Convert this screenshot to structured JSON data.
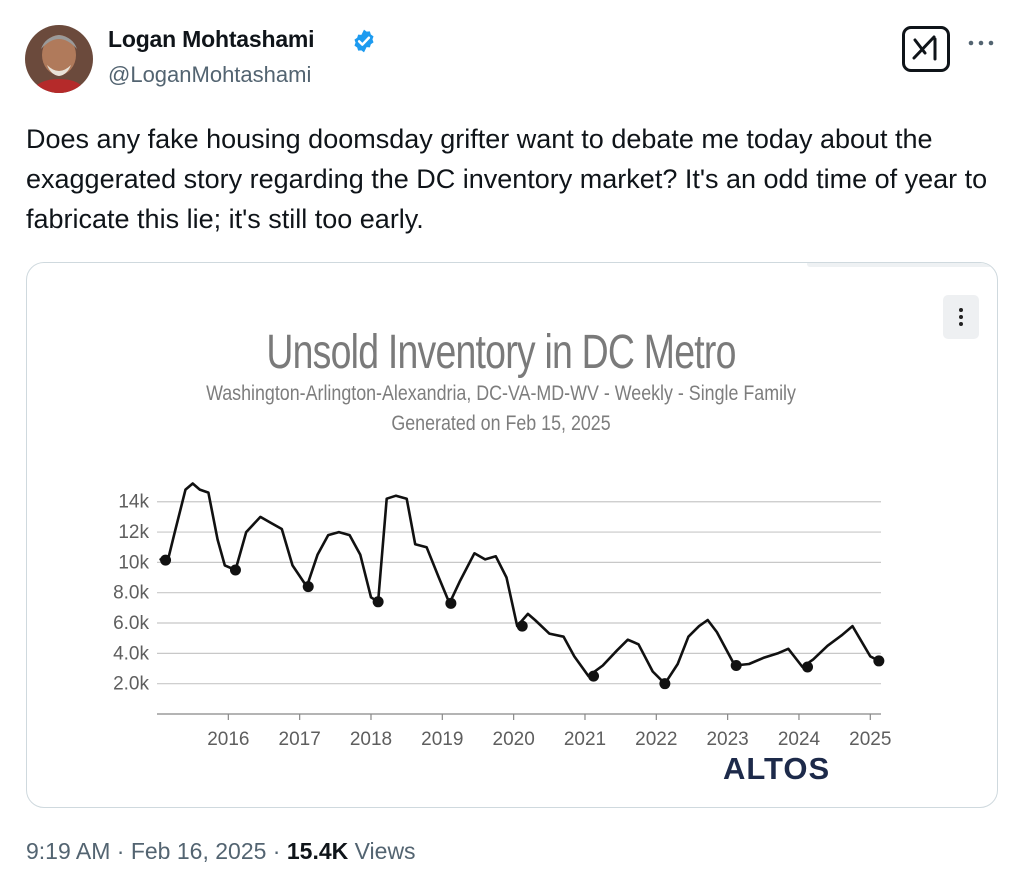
{
  "author": {
    "name": "Logan Mohtashami",
    "handle": "@LoganMohtashami",
    "verified_color": "#1d9bf0"
  },
  "header_icons": [
    "grok-icon",
    "more-icon"
  ],
  "tweet": {
    "text": "Does any fake housing doomsday grifter want to debate me today about the exaggerated story regarding the DC inventory market? It's an odd time of year to fabricate this lie; it's still too early."
  },
  "meta": {
    "time": "9:19 AM",
    "separator1": "·",
    "date": "Feb 16, 2025",
    "separator2": "·",
    "views_count": "15.4K",
    "views_label": "Views"
  },
  "chart_data": {
    "type": "line",
    "title": "Unsold Inventory in DC Metro",
    "subtitle": "Washington-Arlington-Alexandria, DC-VA-MD-WV - Weekly - Single Family",
    "generated": "Generated on Feb 15, 2025",
    "brand": "ALTOS",
    "y_ticks": [
      "2.0k",
      "4.0k",
      "6.0k",
      "8.0k",
      "10k",
      "12k",
      "14k"
    ],
    "y_tick_values": [
      2000,
      4000,
      6000,
      8000,
      10000,
      12000,
      14000
    ],
    "x_ticks": [
      "2016",
      "2017",
      "2018",
      "2019",
      "2020",
      "2021",
      "2022",
      "2023",
      "2024",
      "2025"
    ],
    "x_tick_values": [
      2016,
      2017,
      2018,
      2019,
      2020,
      2021,
      2022,
      2023,
      2024,
      2025
    ],
    "xlim": [
      2015.0,
      2025.15
    ],
    "ylim": [
      0,
      15500
    ],
    "grid": true,
    "line_color": "#111111",
    "series": [
      {
        "points": [
          [
            2015.05,
            10200
          ],
          [
            2015.15,
            10100
          ],
          [
            2015.25,
            12000
          ],
          [
            2015.4,
            14800
          ],
          [
            2015.5,
            15200
          ],
          [
            2015.6,
            14800
          ],
          [
            2015.72,
            14600
          ],
          [
            2015.85,
            11500
          ],
          [
            2015.95,
            9800
          ],
          [
            2016.1,
            9500
          ],
          [
            2016.25,
            12000
          ],
          [
            2016.45,
            13000
          ],
          [
            2016.6,
            12600
          ],
          [
            2016.75,
            12200
          ],
          [
            2016.9,
            9800
          ],
          [
            2017.1,
            8400
          ],
          [
            2017.25,
            10500
          ],
          [
            2017.4,
            11800
          ],
          [
            2017.55,
            12000
          ],
          [
            2017.7,
            11800
          ],
          [
            2017.85,
            10500
          ],
          [
            2018.0,
            7700
          ],
          [
            2018.1,
            7400
          ],
          [
            2018.22,
            14200
          ],
          [
            2018.35,
            14400
          ],
          [
            2018.5,
            14200
          ],
          [
            2018.62,
            11200
          ],
          [
            2018.78,
            11000
          ],
          [
            2018.95,
            9000
          ],
          [
            2019.1,
            7300
          ],
          [
            2019.25,
            8800
          ],
          [
            2019.45,
            10600
          ],
          [
            2019.6,
            10200
          ],
          [
            2019.75,
            10400
          ],
          [
            2019.9,
            9000
          ],
          [
            2020.05,
            5800
          ],
          [
            2020.2,
            6600
          ],
          [
            2020.3,
            6200
          ],
          [
            2020.5,
            5300
          ],
          [
            2020.7,
            5100
          ],
          [
            2020.85,
            3800
          ],
          [
            2021.05,
            2500
          ],
          [
            2021.25,
            3200
          ],
          [
            2021.45,
            4200
          ],
          [
            2021.6,
            4900
          ],
          [
            2021.75,
            4600
          ],
          [
            2021.95,
            2800
          ],
          [
            2022.12,
            2000
          ],
          [
            2022.3,
            3300
          ],
          [
            2022.45,
            5100
          ],
          [
            2022.6,
            5800
          ],
          [
            2022.72,
            6200
          ],
          [
            2022.85,
            5400
          ],
          [
            2023.1,
            3200
          ],
          [
            2023.3,
            3300
          ],
          [
            2023.5,
            3700
          ],
          [
            2023.7,
            4000
          ],
          [
            2023.85,
            4300
          ],
          [
            2024.05,
            3100
          ],
          [
            2024.2,
            3600
          ],
          [
            2024.4,
            4500
          ],
          [
            2024.6,
            5200
          ],
          [
            2024.75,
            5800
          ],
          [
            2024.85,
            5000
          ],
          [
            2025.0,
            3800
          ],
          [
            2025.12,
            3500
          ]
        ],
        "markers": [
          [
            2015.12,
            10150
          ],
          [
            2016.1,
            9500
          ],
          [
            2017.12,
            8400
          ],
          [
            2018.1,
            7400
          ],
          [
            2019.12,
            7300
          ],
          [
            2020.12,
            5800
          ],
          [
            2021.12,
            2500
          ],
          [
            2022.12,
            2000
          ],
          [
            2023.12,
            3200
          ],
          [
            2024.12,
            3100
          ],
          [
            2025.12,
            3500
          ]
        ]
      }
    ]
  }
}
